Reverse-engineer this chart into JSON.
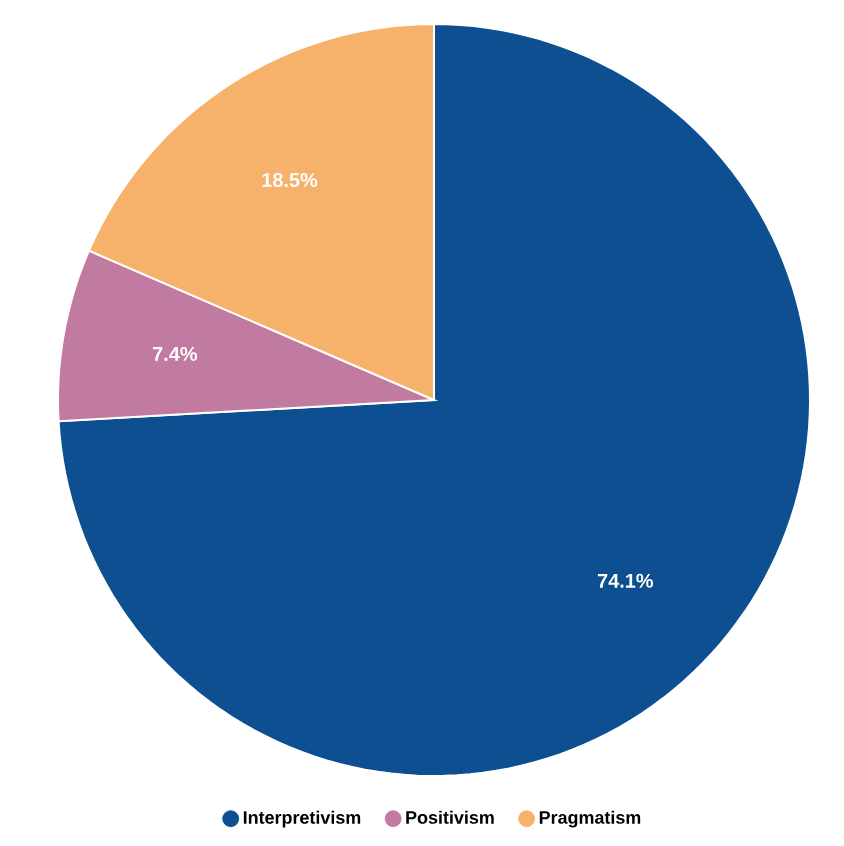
{
  "chart_data": {
    "type": "pie",
    "categories": [
      "Interpretivism",
      "Positivism",
      "Pragmatism"
    ],
    "values": [
      74.1,
      7.4,
      18.5
    ],
    "colors": [
      "#0d4f91",
      "#c27ba0",
      "#f6b26b"
    ],
    "value_labels": [
      "74.1%",
      "7.4%",
      "18.5%"
    ],
    "legend": "bottom"
  }
}
